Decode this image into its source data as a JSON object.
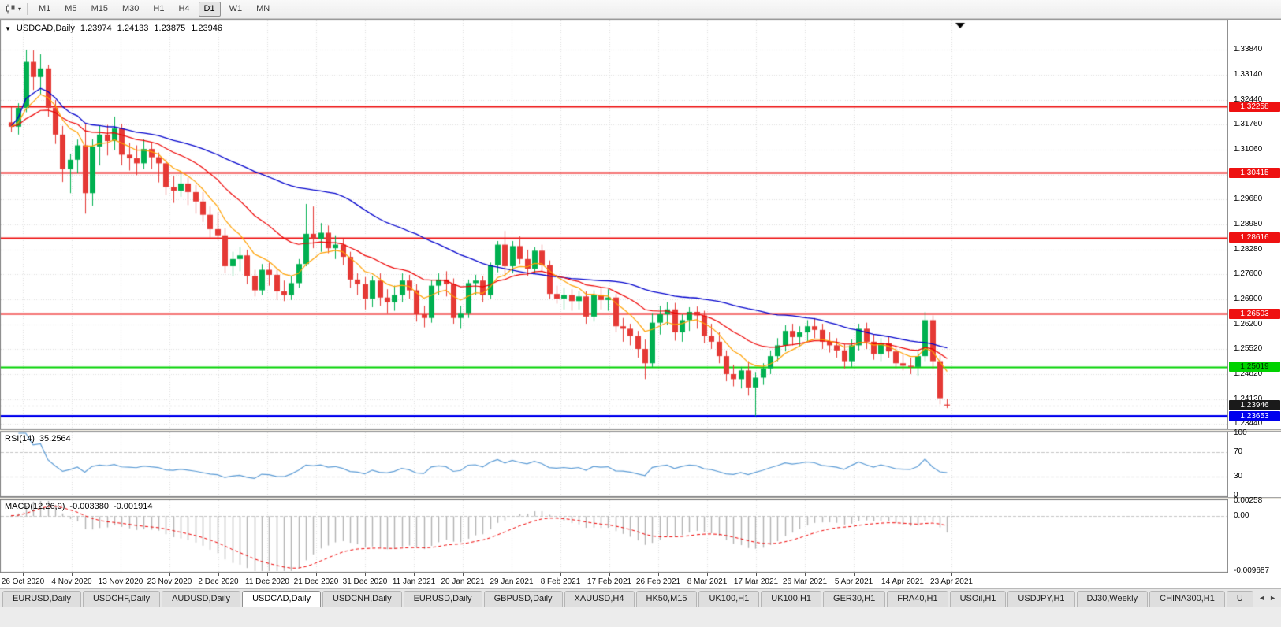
{
  "toolbar": {
    "timeframes": [
      "M1",
      "M5",
      "M15",
      "M30",
      "H1",
      "H4",
      "D1",
      "W1",
      "MN"
    ],
    "active_timeframe": "D1",
    "icons": {
      "chart_type": "candlestick-chart",
      "dropdown": "▾"
    }
  },
  "chart_header": {
    "collapse_arrow": "▼",
    "symbol_period": "USDCAD,Daily",
    "open": "1.23974",
    "high": "1.24133",
    "low": "1.23875",
    "close": "1.23946"
  },
  "price_scale": {
    "ticks": [
      "1.33840",
      "1.33140",
      "1.32440",
      "1.31760",
      "1.31060",
      "1.30360",
      "1.29680",
      "1.28980",
      "1.28280",
      "1.27600",
      "1.26900",
      "1.26200",
      "1.25520",
      "1.24820",
      "1.24120",
      "1.23440"
    ]
  },
  "levels": {
    "resistance": [
      {
        "label": "1.32258",
        "value": 1.32258,
        "color": "#ee1111"
      },
      {
        "label": "1.30415",
        "value": 1.30415,
        "color": "#ee1111"
      },
      {
        "label": "1.28616",
        "value": 1.28616,
        "color": "#ee1111"
      },
      {
        "label": "1.26503",
        "value": 1.26503,
        "color": "#ee1111"
      }
    ],
    "support_green": {
      "label": "1.25019",
      "value": 1.25019,
      "color": "#00d200"
    },
    "support_blue": {
      "label": "1.23653",
      "value": 1.23653,
      "color": "#0000ee"
    },
    "current_price": {
      "label": "1.23946",
      "value": 1.23946,
      "color": "#1a1a1a"
    }
  },
  "rsi_panel": {
    "name": "RSI(14)",
    "value": "35.2564",
    "levels": [
      "100",
      "70",
      "30",
      "0"
    ],
    "line_color": "#5b9bd5"
  },
  "macd_panel": {
    "name": "MACD(12,26,9)",
    "main_value": "-0.003380",
    "signal_value": "-0.001914",
    "scale_labels": [
      "0.00258",
      "0.00",
      "-0.009687"
    ],
    "scale_max": 0.00258,
    "scale_min": -0.009687
  },
  "time_axis": [
    "26 Oct 2020",
    "4 Nov 2020",
    "13 Nov 2020",
    "23 Nov 2020",
    "2 Dec 2020",
    "11 Dec 2020",
    "21 Dec 2020",
    "31 Dec 2020",
    "11 Jan 2021",
    "20 Jan 2021",
    "29 Jan 2021",
    "8 Feb 2021",
    "17 Feb 2021",
    "26 Feb 2021",
    "8 Mar 2021",
    "17 Mar 2021",
    "26 Mar 2021",
    "5 Apr 2021",
    "14 Apr 2021",
    "23 Apr 2021"
  ],
  "tabs": {
    "items": [
      "EURUSD,Daily",
      "USDCHF,Daily",
      "AUDUSD,Daily",
      "USDCAD,Daily",
      "USDCNH,Daily",
      "EURUSD,Daily",
      "GBPUSD,Daily",
      "XAUUSD,H4",
      "HK50,M15",
      "UK100,H1",
      "UK100,H1",
      "GER30,H1",
      "FRA40,H1",
      "USOil,H1",
      "USDJPY,H1",
      "DJ30,Weekly",
      "CHINA300,H1",
      "U"
    ],
    "active_index": 3,
    "scroll_left": "◄",
    "scroll_right": "►"
  },
  "chart_data": {
    "type": "candlestick",
    "symbol": "USDCAD",
    "period": "Daily",
    "up_color": "#00b050",
    "down_color": "#e53935",
    "ylim": [
      1.2333,
      1.3463
    ],
    "overlays": [
      {
        "name": "ma-slow",
        "method": "sma",
        "period": 45,
        "color": "#0000cc"
      },
      {
        "name": "ma-mid",
        "method": "ema",
        "period": 20,
        "color": "#ee0000"
      },
      {
        "name": "ma-fast",
        "method": "ema",
        "period": 8,
        "color": "#ffa000"
      }
    ],
    "indicators": [
      {
        "name": "RSI",
        "period": 14,
        "current": 35.2564
      },
      {
        "name": "MACD",
        "fast": 12,
        "slow": 26,
        "signal": 9,
        "current_main": -0.00338,
        "current_signal": -0.001914
      }
    ],
    "candles": [
      [
        1.3182,
        1.3225,
        1.3155,
        1.317
      ],
      [
        1.317,
        1.3235,
        1.3148,
        1.3222
      ],
      [
        1.3222,
        1.3384,
        1.321,
        1.335
      ],
      [
        1.335,
        1.3382,
        1.3272,
        1.3308
      ],
      [
        1.3308,
        1.3371,
        1.326,
        1.3332
      ],
      [
        1.3332,
        1.3342,
        1.3198,
        1.3222
      ],
      [
        1.3222,
        1.3244,
        1.3122,
        1.3148
      ],
      [
        1.3148,
        1.3172,
        1.3016,
        1.3052
      ],
      [
        1.3052,
        1.3095,
        1.2985,
        1.3078
      ],
      [
        1.3078,
        1.3134,
        1.304,
        1.3118
      ],
      [
        1.3118,
        1.318,
        1.2928,
        1.2985
      ],
      [
        1.2985,
        1.3135,
        1.295,
        1.3115
      ],
      [
        1.3115,
        1.3172,
        1.3062,
        1.3148
      ],
      [
        1.3148,
        1.3175,
        1.309,
        1.313
      ],
      [
        1.313,
        1.3198,
        1.3105,
        1.3165
      ],
      [
        1.3165,
        1.3178,
        1.3062,
        1.3092
      ],
      [
        1.3092,
        1.3125,
        1.3048,
        1.3082
      ],
      [
        1.3082,
        1.3118,
        1.3035,
        1.3068
      ],
      [
        1.3068,
        1.3135,
        1.3052,
        1.3108
      ],
      [
        1.3108,
        1.3125,
        1.3052,
        1.3085
      ],
      [
        1.3085,
        1.3098,
        1.3015,
        1.3068
      ],
      [
        1.3068,
        1.308,
        1.298,
        1.3002
      ],
      [
        1.3002,
        1.3032,
        1.2958,
        1.2992
      ],
      [
        1.2992,
        1.3042,
        1.2975,
        1.3012
      ],
      [
        1.3012,
        1.3028,
        1.2952,
        1.2988
      ],
      [
        1.2988,
        1.3008,
        1.2928,
        1.2962
      ],
      [
        1.2962,
        1.2988,
        1.2905,
        1.2925
      ],
      [
        1.2925,
        1.2948,
        1.2862,
        1.2885
      ],
      [
        1.2885,
        1.2932,
        1.2855,
        1.2868
      ],
      [
        1.2868,
        1.2888,
        1.2762,
        1.2782
      ],
      [
        1.2782,
        1.2822,
        1.2755,
        1.2802
      ],
      [
        1.2802,
        1.2835,
        1.2768,
        1.2812
      ],
      [
        1.2812,
        1.2828,
        1.2732,
        1.2755
      ],
      [
        1.2755,
        1.2772,
        1.2698,
        1.2715
      ],
      [
        1.2715,
        1.2788,
        1.2702,
        1.2772
      ],
      [
        1.2772,
        1.2792,
        1.2728,
        1.2758
      ],
      [
        1.2758,
        1.2775,
        1.2688,
        1.2712
      ],
      [
        1.2712,
        1.2742,
        1.2685,
        1.2702
      ],
      [
        1.2702,
        1.2755,
        1.2688,
        1.2735
      ],
      [
        1.2735,
        1.2802,
        1.2722,
        1.2788
      ],
      [
        1.2788,
        1.2955,
        1.2782,
        1.2872
      ],
      [
        1.2872,
        1.2948,
        1.2832,
        1.2858
      ],
      [
        1.2858,
        1.2902,
        1.2822,
        1.2875
      ],
      [
        1.2875,
        1.2895,
        1.2818,
        1.2832
      ],
      [
        1.2832,
        1.2868,
        1.2802,
        1.2842
      ],
      [
        1.2842,
        1.2858,
        1.2785,
        1.2808
      ],
      [
        1.2808,
        1.2822,
        1.2722,
        1.2745
      ],
      [
        1.2745,
        1.2762,
        1.2702,
        1.2732
      ],
      [
        1.2732,
        1.2752,
        1.2662,
        1.2692
      ],
      [
        1.2692,
        1.2755,
        1.2668,
        1.2742
      ],
      [
        1.2742,
        1.2762,
        1.2672,
        1.2695
      ],
      [
        1.2695,
        1.2718,
        1.2652,
        1.2682
      ],
      [
        1.2682,
        1.2728,
        1.2658,
        1.2702
      ],
      [
        1.2702,
        1.2762,
        1.2682,
        1.2742
      ],
      [
        1.2742,
        1.2758,
        1.2692,
        1.2715
      ],
      [
        1.2715,
        1.2732,
        1.2628,
        1.2648
      ],
      [
        1.2648,
        1.2672,
        1.2612,
        1.2638
      ],
      [
        1.2638,
        1.2742,
        1.2625,
        1.2728
      ],
      [
        1.2728,
        1.2762,
        1.2702,
        1.2745
      ],
      [
        1.2745,
        1.2768,
        1.2698,
        1.2732
      ],
      [
        1.2732,
        1.2748,
        1.2622,
        1.2638
      ],
      [
        1.2638,
        1.2672,
        1.2608,
        1.2652
      ],
      [
        1.2652,
        1.2745,
        1.2638,
        1.2735
      ],
      [
        1.2735,
        1.2758,
        1.2702,
        1.2742
      ],
      [
        1.2742,
        1.2755,
        1.2682,
        1.2702
      ],
      [
        1.2702,
        1.2792,
        1.2692,
        1.2785
      ],
      [
        1.2785,
        1.2852,
        1.2765,
        1.2842
      ],
      [
        1.2842,
        1.288,
        1.2752,
        1.2782
      ],
      [
        1.2782,
        1.2852,
        1.2762,
        1.2838
      ],
      [
        1.2838,
        1.2865,
        1.2788,
        1.2802
      ],
      [
        1.2802,
        1.2828,
        1.2755,
        1.2775
      ],
      [
        1.2775,
        1.2835,
        1.2762,
        1.2825
      ],
      [
        1.2825,
        1.2842,
        1.2768,
        1.2785
      ],
      [
        1.2785,
        1.2798,
        1.2692,
        1.2705
      ],
      [
        1.2705,
        1.2728,
        1.2678,
        1.2692
      ],
      [
        1.2692,
        1.2722,
        1.2662,
        1.2702
      ],
      [
        1.2702,
        1.2718,
        1.2658,
        1.2685
      ],
      [
        1.2685,
        1.2712,
        1.2662,
        1.2698
      ],
      [
        1.2698,
        1.2712,
        1.2622,
        1.2642
      ],
      [
        1.2642,
        1.2715,
        1.2628,
        1.2702
      ],
      [
        1.2702,
        1.2722,
        1.2662,
        1.2688
      ],
      [
        1.2688,
        1.2718,
        1.2658,
        1.2695
      ],
      [
        1.2695,
        1.2705,
        1.2598,
        1.2615
      ],
      [
        1.2615,
        1.2638,
        1.2572,
        1.2608
      ],
      [
        1.2608,
        1.2622,
        1.2562,
        1.2588
      ],
      [
        1.2588,
        1.2602,
        1.2528,
        1.2552
      ],
      [
        1.2552,
        1.2578,
        1.2468,
        1.2512
      ],
      [
        1.2512,
        1.2652,
        1.2502,
        1.2625
      ],
      [
        1.2625,
        1.2672,
        1.2592,
        1.2648
      ],
      [
        1.2648,
        1.2682,
        1.2618,
        1.2662
      ],
      [
        1.2662,
        1.268,
        1.2575,
        1.2598
      ],
      [
        1.2598,
        1.2648,
        1.2572,
        1.2632
      ],
      [
        1.2632,
        1.2668,
        1.2602,
        1.2655
      ],
      [
        1.2655,
        1.267,
        1.2608,
        1.2645
      ],
      [
        1.2645,
        1.2658,
        1.2568,
        1.2588
      ],
      [
        1.2588,
        1.2622,
        1.2552,
        1.2572
      ],
      [
        1.2572,
        1.2598,
        1.2512,
        1.2532
      ],
      [
        1.2532,
        1.2548,
        1.2462,
        1.2482
      ],
      [
        1.2482,
        1.2508,
        1.2448,
        1.2468
      ],
      [
        1.2468,
        1.2502,
        1.2442,
        1.2492
      ],
      [
        1.2492,
        1.2518,
        1.2422,
        1.2445
      ],
      [
        1.2445,
        1.2488,
        1.2365,
        1.2472
      ],
      [
        1.2472,
        1.2512,
        1.2452,
        1.2498
      ],
      [
        1.2498,
        1.2548,
        1.2482,
        1.2532
      ],
      [
        1.2532,
        1.2582,
        1.2518,
        1.2562
      ],
      [
        1.2562,
        1.2618,
        1.2545,
        1.2602
      ],
      [
        1.2602,
        1.2622,
        1.2562,
        1.2585
      ],
      [
        1.2585,
        1.2615,
        1.2558,
        1.2598
      ],
      [
        1.2598,
        1.2632,
        1.2572,
        1.2615
      ],
      [
        1.2615,
        1.2638,
        1.2582,
        1.2605
      ],
      [
        1.2605,
        1.2622,
        1.2552,
        1.2572
      ],
      [
        1.2572,
        1.2598,
        1.2542,
        1.2562
      ],
      [
        1.2562,
        1.2582,
        1.2528,
        1.2548
      ],
      [
        1.2548,
        1.2565,
        1.2498,
        1.2518
      ],
      [
        1.2518,
        1.2578,
        1.2502,
        1.2562
      ],
      [
        1.2562,
        1.2622,
        1.2548,
        1.2608
      ],
      [
        1.2608,
        1.2625,
        1.2552,
        1.2572
      ],
      [
        1.2572,
        1.2592,
        1.2522,
        1.2538
      ],
      [
        1.2538,
        1.2582,
        1.2518,
        1.2568
      ],
      [
        1.2568,
        1.2585,
        1.2528,
        1.2545
      ],
      [
        1.2545,
        1.2562,
        1.2498,
        1.2512
      ],
      [
        1.2512,
        1.2538,
        1.2492,
        1.2505
      ],
      [
        1.2505,
        1.2528,
        1.2482,
        1.2502
      ],
      [
        1.2502,
        1.2545,
        1.2478,
        1.2532
      ],
      [
        1.2532,
        1.2655,
        1.2518,
        1.2632
      ],
      [
        1.2632,
        1.2645,
        1.2495,
        1.2518
      ],
      [
        1.2518,
        1.2542,
        1.2398,
        1.2415
      ],
      [
        1.23974,
        1.24133,
        1.23875,
        1.23946
      ]
    ]
  }
}
